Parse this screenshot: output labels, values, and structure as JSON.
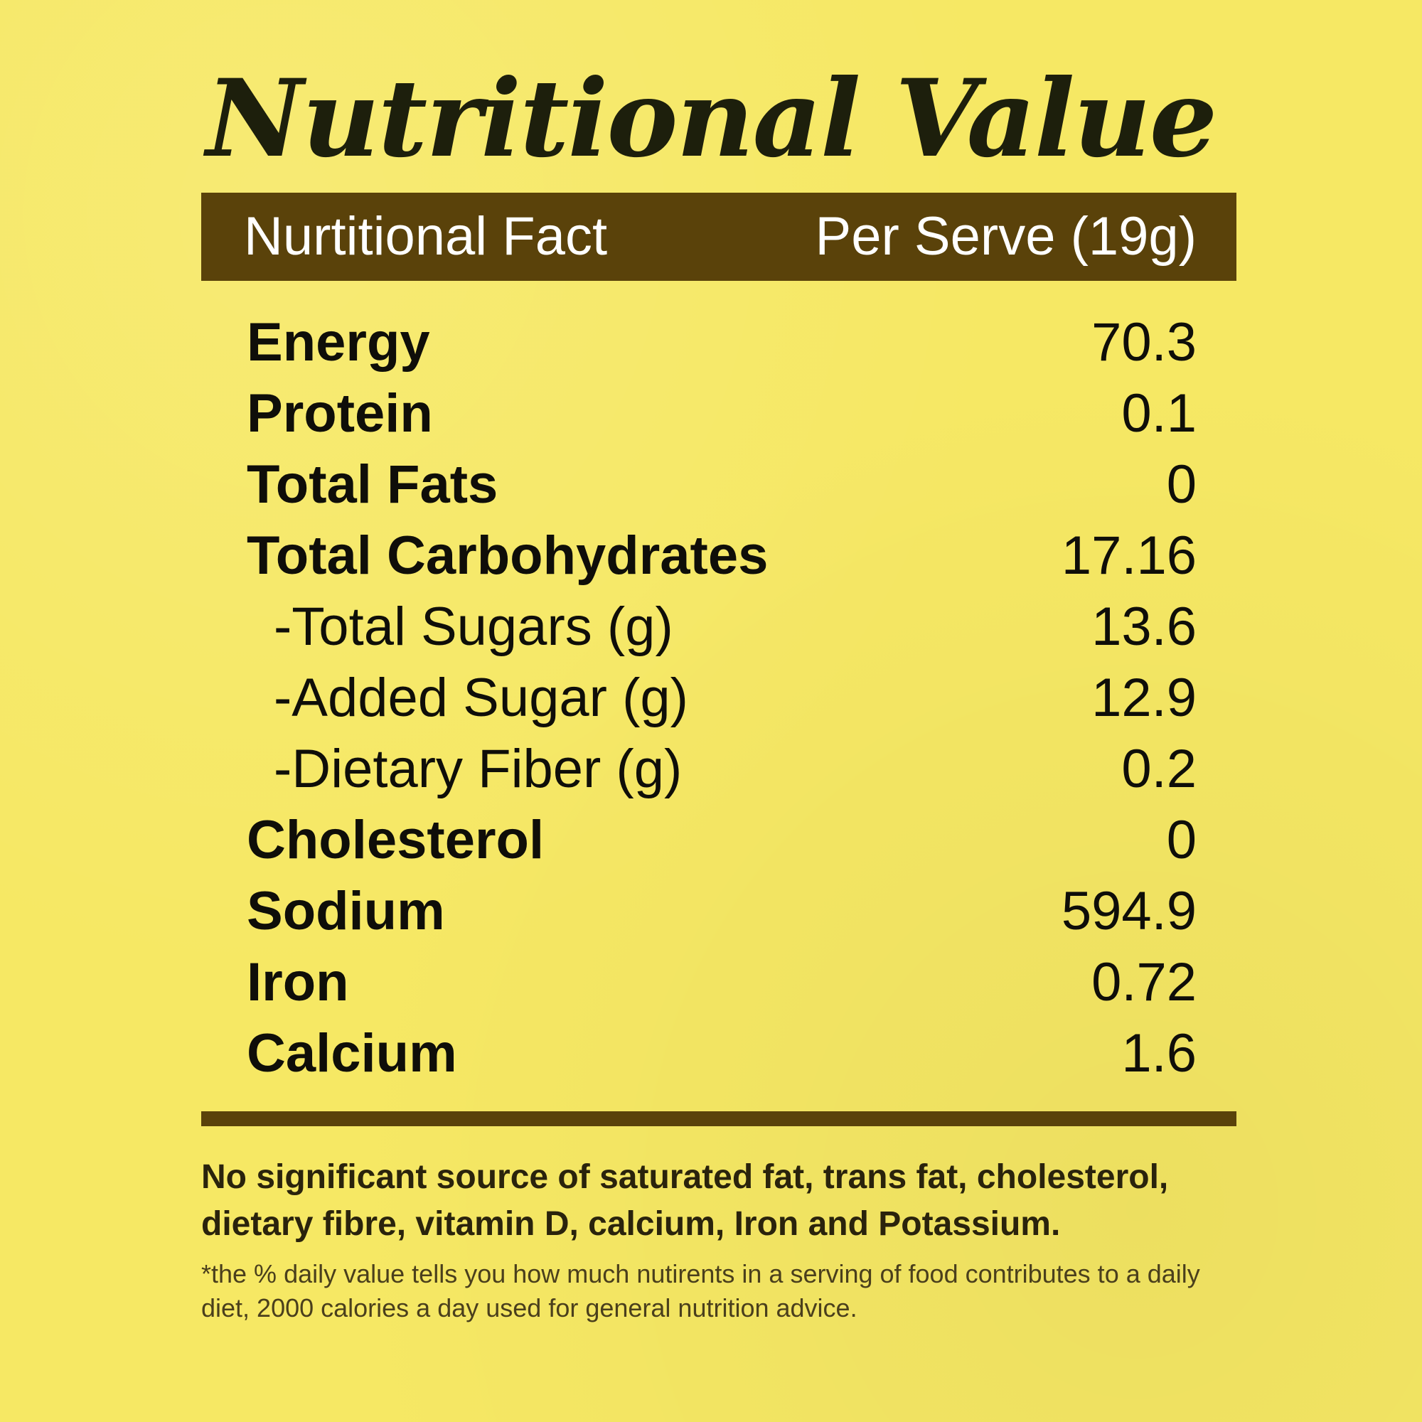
{
  "title": "Nutritional Value",
  "header": {
    "left": "Nurtitional Fact",
    "right": "Per Serve (19g)"
  },
  "rows": [
    {
      "label": "Energy",
      "value": "70.3"
    },
    {
      "label": "Protein",
      "value": "0.1"
    },
    {
      "label": "Total Fats",
      "value": "0"
    },
    {
      "label": "Total Carbohydrates",
      "value": "17.16"
    },
    {
      "label": "-Total Sugars (g)",
      "value": "13.6"
    },
    {
      "label": "-Added Sugar (g)",
      "value": "12.9"
    },
    {
      "label": "-Dietary Fiber (g)",
      "value": "0.2"
    },
    {
      "label": "Cholesterol",
      "value": "0"
    },
    {
      "label": "Sodium",
      "value": "594.9"
    },
    {
      "label": "Iron",
      "value": "0.72"
    },
    {
      "label": "Calcium",
      "value": "1.6"
    }
  ],
  "notes": {
    "significant": "No significant source of saturated fat, trans fat, cholesterol, dietary fibre, vitamin D, calcium, Iron and Potassium.",
    "daily_value": "*the % daily value tells you how much nutirents in a serving of food contributes to a daily diet, 2000 calories a day used for general nutrition advice."
  },
  "colors": {
    "background": "#f6e864",
    "bar": "#5a420a",
    "text": "#0f0e09"
  }
}
